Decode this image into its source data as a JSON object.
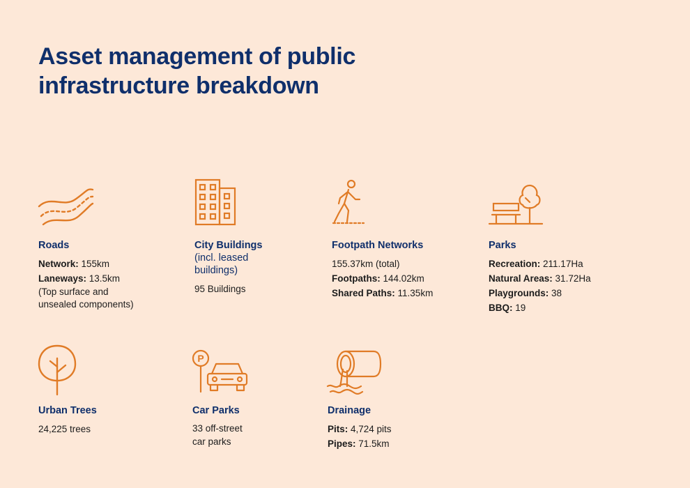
{
  "title": {
    "line1": "Asset management of public",
    "line2": "infrastructure breakdown"
  },
  "colors": {
    "accent": "#e07b26",
    "heading": "#0f2f6b",
    "background": "#fde8d8"
  },
  "categories": [
    {
      "icon": "road-icon",
      "heading": "Roads",
      "lines": [
        {
          "label": "Network:",
          "value": " 155km"
        },
        {
          "label": "Laneways:",
          "value": " 13.5km"
        }
      ],
      "note": [
        "(Top surface and",
        "unsealed components)"
      ]
    },
    {
      "icon": "building-icon",
      "heading": "City Buildings",
      "subheading": [
        "(incl. leased",
        "buildings)"
      ],
      "plain": "95 Buildings"
    },
    {
      "icon": "walking-person-icon",
      "heading": "Footpath Networks",
      "plain": "155.37km (total)",
      "lines": [
        {
          "label": "Footpaths:",
          "value": " 144.02km"
        },
        {
          "label": "Shared Paths:",
          "value": " 11.35km"
        }
      ]
    },
    {
      "icon": "park-bench-tree-icon",
      "heading": "Parks",
      "lines": [
        {
          "label": "Recreation:",
          "value": " 211.17Ha"
        },
        {
          "label": "Natural Areas:",
          "value": " 31.72Ha"
        },
        {
          "label": "Playgrounds:",
          "value": " 38"
        },
        {
          "label": "BBQ:",
          "value": " 19"
        }
      ]
    },
    {
      "icon": "tree-icon",
      "heading": "Urban Trees",
      "plain": "24,225 trees"
    },
    {
      "icon": "car-parking-icon",
      "heading": "Car Parks",
      "plainLines": [
        "33 off-street",
        "car parks"
      ],
      "parking_letter": "P"
    },
    {
      "icon": "drainage-pipe-icon",
      "heading": "Drainage",
      "lines": [
        {
          "label": "Pits:",
          "value": " 4,724 pits"
        },
        {
          "label": "Pipes:",
          "value": " 71.5km"
        }
      ]
    }
  ]
}
